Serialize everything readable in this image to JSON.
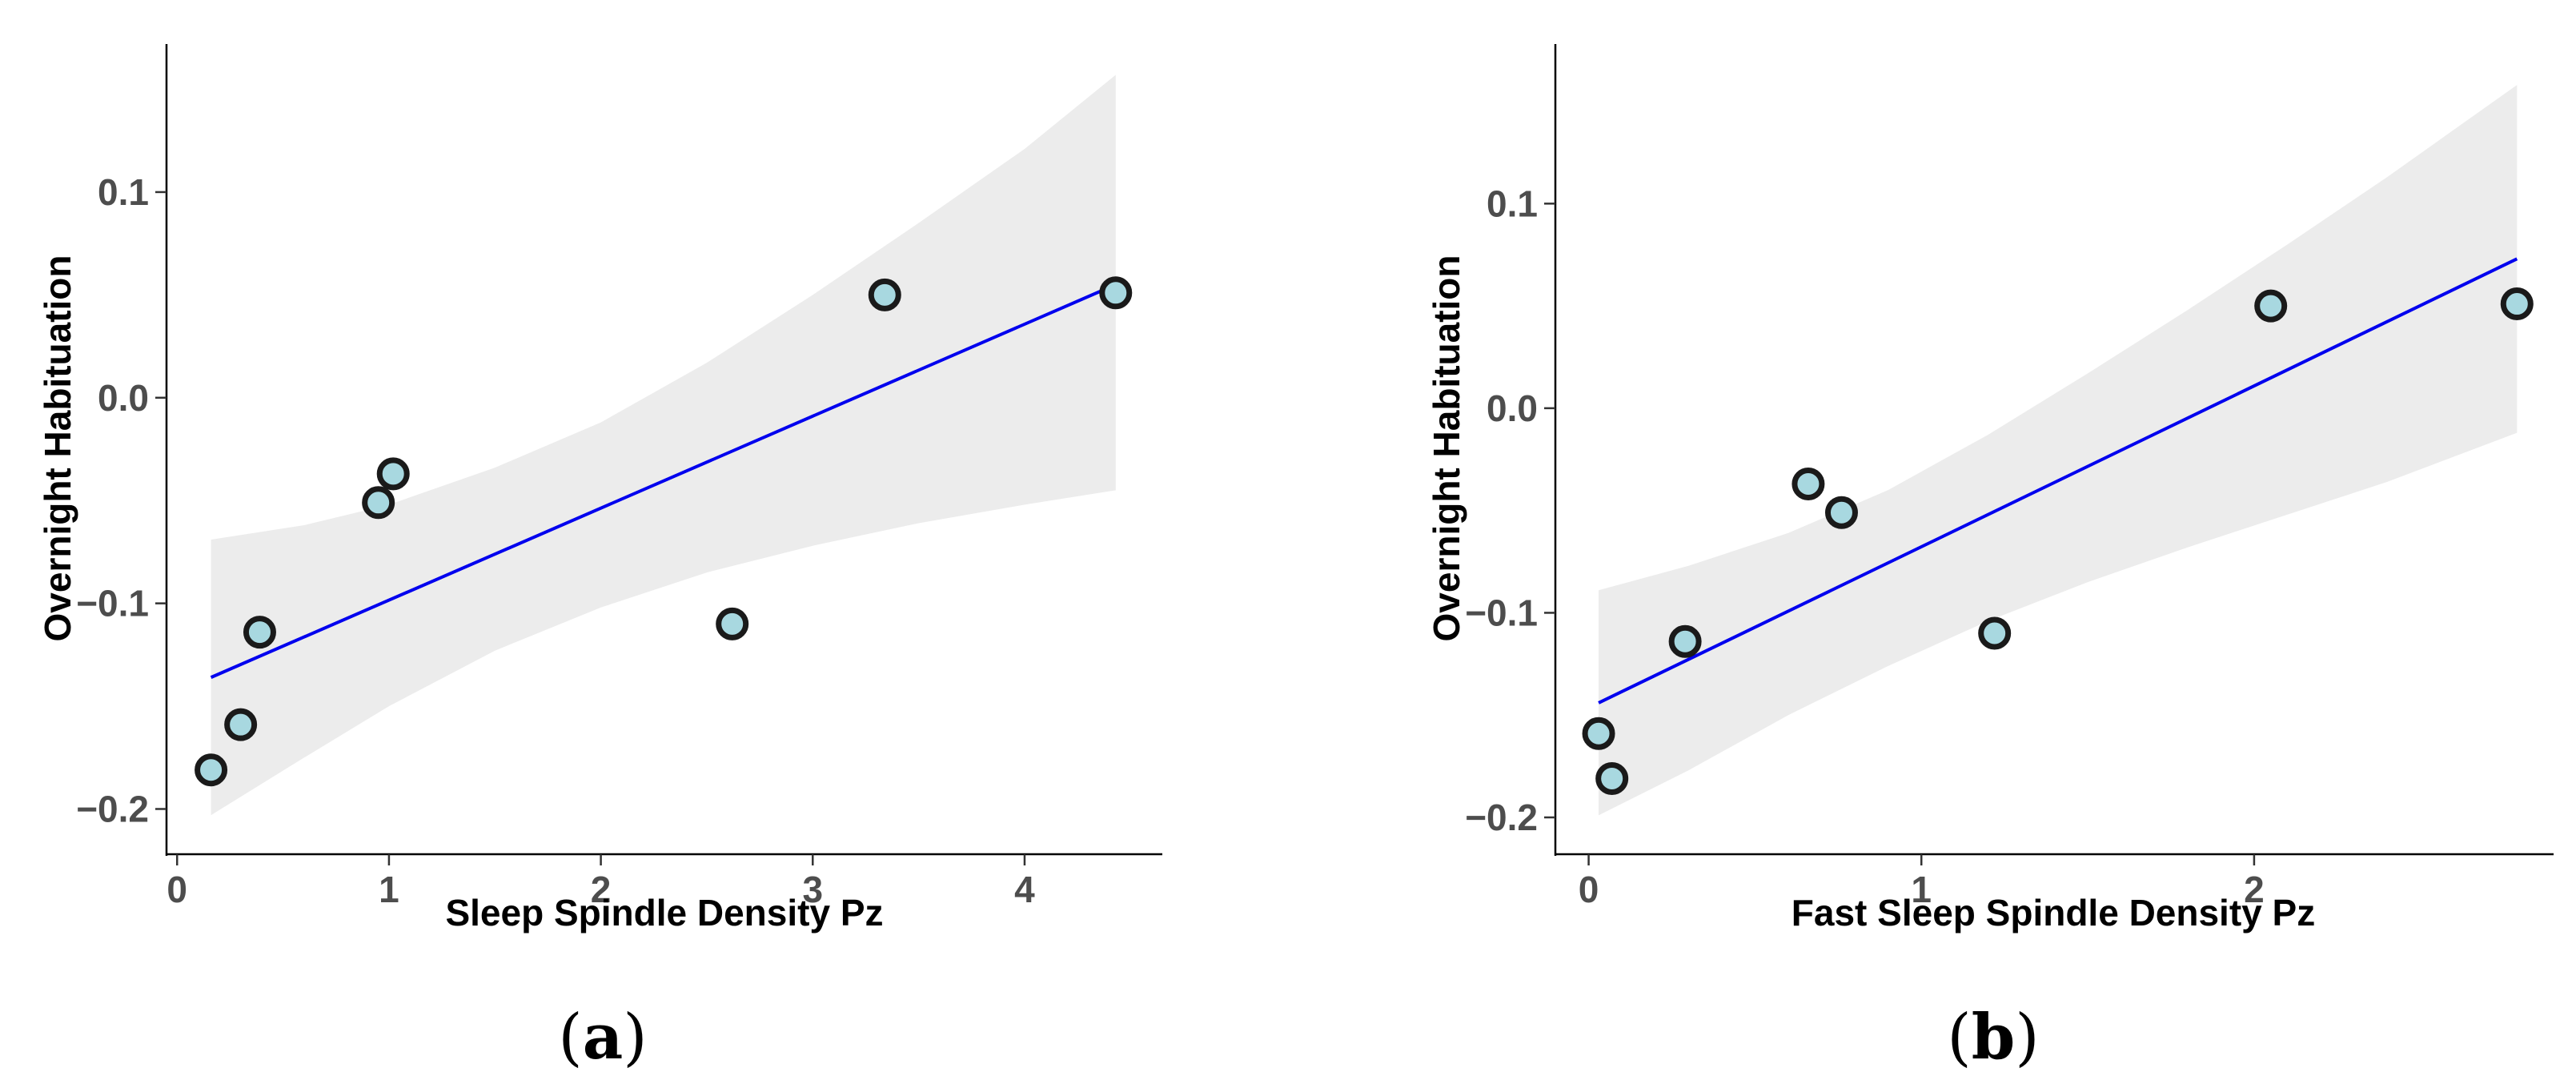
{
  "chart_data": [
    {
      "type": "scatter",
      "panel_label": "(a)",
      "panel_letter": "a",
      "xlabel": "Sleep Spindle Density Pz",
      "ylabel": "Overnight Habituation",
      "xlim": [
        -0.05,
        4.65
      ],
      "ylim": [
        -0.222,
        0.172
      ],
      "xticks": [
        0,
        1,
        2,
        3,
        4
      ],
      "xtick_labels": [
        "0",
        "1",
        "2",
        "3",
        "4"
      ],
      "yticks": [
        -0.2,
        -0.1,
        0.0,
        0.1
      ],
      "ytick_labels": [
        "−0.2",
        "−0.1",
        "0.0",
        "0.1"
      ],
      "grid": false,
      "points": [
        {
          "x": 0.16,
          "y": -0.181
        },
        {
          "x": 0.3,
          "y": -0.159
        },
        {
          "x": 0.39,
          "y": -0.114
        },
        {
          "x": 0.95,
          "y": -0.051
        },
        {
          "x": 1.02,
          "y": -0.037
        },
        {
          "x": 2.62,
          "y": -0.11
        },
        {
          "x": 3.34,
          "y": 0.05
        },
        {
          "x": 4.43,
          "y": 0.051
        }
      ],
      "fit_line": {
        "x": [
          0.16,
          4.43
        ],
        "y": [
          -0.136,
          0.055
        ],
        "color": "#0000ee"
      },
      "confidence_band": {
        "x": [
          0.16,
          0.6,
          1.0,
          1.5,
          2.0,
          2.5,
          3.0,
          3.5,
          4.0,
          4.43
        ],
        "upper": [
          -0.069,
          -0.062,
          -0.052,
          -0.034,
          -0.012,
          0.017,
          0.05,
          0.085,
          0.121,
          0.157
        ],
        "lower": [
          -0.203,
          -0.175,
          -0.15,
          -0.123,
          -0.102,
          -0.085,
          -0.072,
          -0.061,
          -0.052,
          -0.045
        ],
        "color": "#ececec"
      },
      "point_fill": "#a8d8e0",
      "point_stroke": "#1a1a1a"
    },
    {
      "type": "scatter",
      "panel_label": "(b)",
      "panel_letter": "b",
      "xlabel": "Fast Sleep Spindle Density Pz",
      "ylabel": "Overnight Habituation",
      "xlim": [
        -0.1,
        2.9
      ],
      "ylim": [
        -0.218,
        0.178
      ],
      "xticks": [
        0,
        1,
        2
      ],
      "xtick_labels": [
        "0",
        "1",
        "2"
      ],
      "yticks": [
        -0.2,
        -0.1,
        0.0,
        0.1
      ],
      "ytick_labels": [
        "−0.2",
        "−0.1",
        "0.0",
        "0.1"
      ],
      "grid": false,
      "points": [
        {
          "x": 0.03,
          "y": -0.159
        },
        {
          "x": 0.07,
          "y": -0.181
        },
        {
          "x": 0.29,
          "y": -0.114
        },
        {
          "x": 0.66,
          "y": -0.037
        },
        {
          "x": 0.76,
          "y": -0.051
        },
        {
          "x": 1.22,
          "y": -0.11
        },
        {
          "x": 2.05,
          "y": 0.05
        },
        {
          "x": 2.79,
          "y": 0.051
        }
      ],
      "fit_line": {
        "x": [
          0.03,
          2.79
        ],
        "y": [
          -0.144,
          0.073
        ],
        "color": "#0000ee"
      },
      "confidence_band": {
        "x": [
          0.03,
          0.3,
          0.6,
          0.9,
          1.2,
          1.5,
          1.8,
          2.1,
          2.4,
          2.79
        ],
        "upper": [
          -0.089,
          -0.077,
          -0.061,
          -0.04,
          -0.013,
          0.017,
          0.048,
          0.08,
          0.113,
          0.158
        ],
        "lower": [
          -0.199,
          -0.177,
          -0.15,
          -0.126,
          -0.104,
          -0.085,
          -0.068,
          -0.052,
          -0.036,
          -0.012
        ],
        "color": "#ececec"
      },
      "point_fill": "#a8d8e0",
      "point_stroke": "#1a1a1a"
    }
  ]
}
